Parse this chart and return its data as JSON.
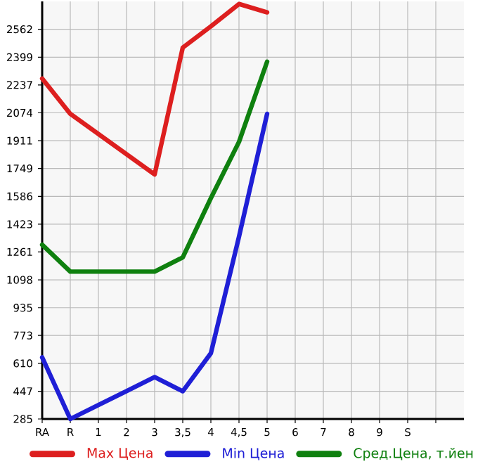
{
  "chart_data": {
    "type": "line",
    "categories": [
      "RA",
      "R",
      "1",
      "2",
      "3",
      "3,5",
      "4",
      "4,5",
      "5",
      "6",
      "7",
      "8",
      "9",
      "S",
      null
    ],
    "series": [
      {
        "name": "Max Цена",
        "color": "#dd1f1f",
        "values": [
          2274,
          2068,
          1950,
          1832,
          1714,
          2455,
          2579,
          2710,
          2661,
          null,
          null,
          null,
          null,
          null,
          null
        ]
      },
      {
        "name": "Min Цена",
        "color": "#1f1fd6",
        "values": [
          645,
          285,
          367,
          448,
          530,
          447,
          669,
          1350,
          2068,
          null,
          null,
          null,
          null,
          null,
          null
        ]
      },
      {
        "name": "Сред.Цена, т.йен",
        "color": "#0f800f",
        "values": [
          1303,
          1146,
          1146,
          1146,
          1146,
          1229,
          1575,
          1904,
          2373,
          null,
          null,
          null,
          null,
          null,
          null
        ]
      }
    ],
    "ylim": [
      285,
      2725
    ],
    "yticks": [
      285,
      447,
      610,
      773,
      935,
      1098,
      1261,
      1423,
      1586,
      1749,
      1911,
      2074,
      2237,
      2399,
      2562
    ],
    "grid": true,
    "legend": "bottom",
    "marker": "none",
    "line_style": "solid"
  }
}
